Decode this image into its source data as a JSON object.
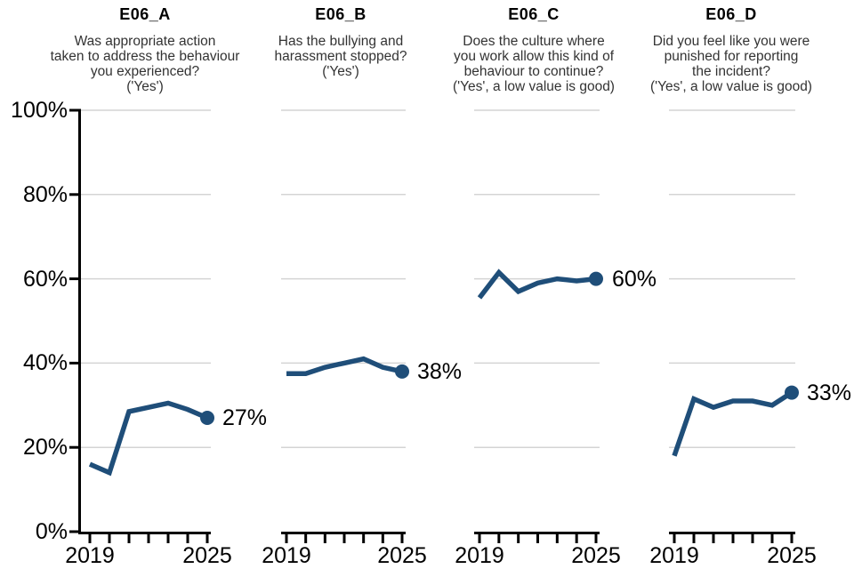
{
  "chart_data": {
    "type": "line",
    "x": [
      "2019",
      "2020",
      "2021",
      "2022",
      "2023",
      "2024",
      "2025"
    ],
    "x_axis": {
      "first_label": "2019",
      "last_label": "2025",
      "ticks_per_panel": 7
    },
    "y_axis": {
      "tick_labels": [
        "0%",
        "20%",
        "40%",
        "60%",
        "80%",
        "100%"
      ],
      "min": 0,
      "max": 100,
      "unit": "%",
      "gridline_values": [
        20,
        40,
        60,
        80,
        100
      ]
    },
    "panels": [
      {
        "id": "E06_A",
        "title": "E06_A",
        "subtitle_lines": [
          "Was appropriate action",
          "taken to address the behaviour",
          "you experienced?",
          "('Yes')"
        ],
        "values": [
          16,
          14,
          28.5,
          29.5,
          30.5,
          29,
          27
        ],
        "end_label": "27%"
      },
      {
        "id": "E06_B",
        "title": "E06_B",
        "subtitle_lines": [
          "Has the bullying and",
          "harassment stopped?",
          "('Yes')"
        ],
        "values": [
          37.5,
          37.5,
          39,
          40,
          41,
          39,
          38
        ],
        "end_label": "38%"
      },
      {
        "id": "E06_C",
        "title": "E06_C",
        "subtitle_lines": [
          "Does the culture where",
          "you work allow this kind of",
          "behaviour to continue?",
          "('Yes', a low value is good)"
        ],
        "values": [
          55.5,
          61.5,
          57,
          59,
          60,
          59.5,
          60
        ],
        "end_label": "60%"
      },
      {
        "id": "E06_D",
        "title": "E06_D",
        "subtitle_lines": [
          "Did you feel like you were",
          "punished for reporting",
          "the incident?",
          "('Yes', a low value is good)"
        ],
        "values": [
          18,
          31.5,
          29.5,
          31,
          31,
          30,
          33
        ],
        "end_label": "33%"
      }
    ],
    "colors": {
      "line": "#1F4E79",
      "grid": "#D4D4D4",
      "axis": "#000000",
      "title_text": "#000000",
      "subtitle_text": "#333333",
      "tick_text": "#000000",
      "value_text": "#000000"
    },
    "layout_hints": {
      "grid": "horizontal-only",
      "shared_y_axis": "left panel only",
      "legend": "none",
      "end_point_marker": "filled circle with value label"
    }
  }
}
